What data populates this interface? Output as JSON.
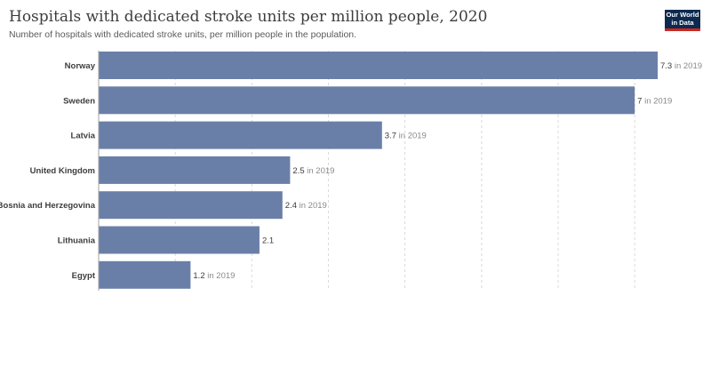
{
  "header": {
    "title": "Hospitals with dedicated stroke units per million people, 2020",
    "subtitle": "Number of hospitals with dedicated stroke units, per million people in the population.",
    "logo_line1": "Our World",
    "logo_line2": "in Data"
  },
  "colors": {
    "bar": "#6a7fa8",
    "grid": "#d9d9d9",
    "axis": "#a0a0a0"
  },
  "chart_data": {
    "type": "bar",
    "orientation": "horizontal",
    "title": "Hospitals with dedicated stroke units per million people, 2020",
    "subtitle": "Number of hospitals with dedicated stroke units, per million people in the population.",
    "categories": [
      "Norway",
      "Sweden",
      "Latvia",
      "United Kingdom",
      "Bosnia and Herzegovina",
      "Lithuania",
      "Egypt"
    ],
    "values": [
      7.3,
      7,
      3.7,
      2.5,
      2.4,
      2.1,
      1.2
    ],
    "value_labels": [
      "7.3",
      "7",
      "3.7",
      "2.5",
      "2.4",
      "2.1",
      "1.2"
    ],
    "year_notes": [
      "in 2019",
      "in 2019",
      "in 2019",
      "in 2019",
      "in 2019",
      "",
      "in 2019"
    ],
    "xlim": [
      0,
      7.3
    ],
    "grid": true,
    "grid_step": 1
  }
}
